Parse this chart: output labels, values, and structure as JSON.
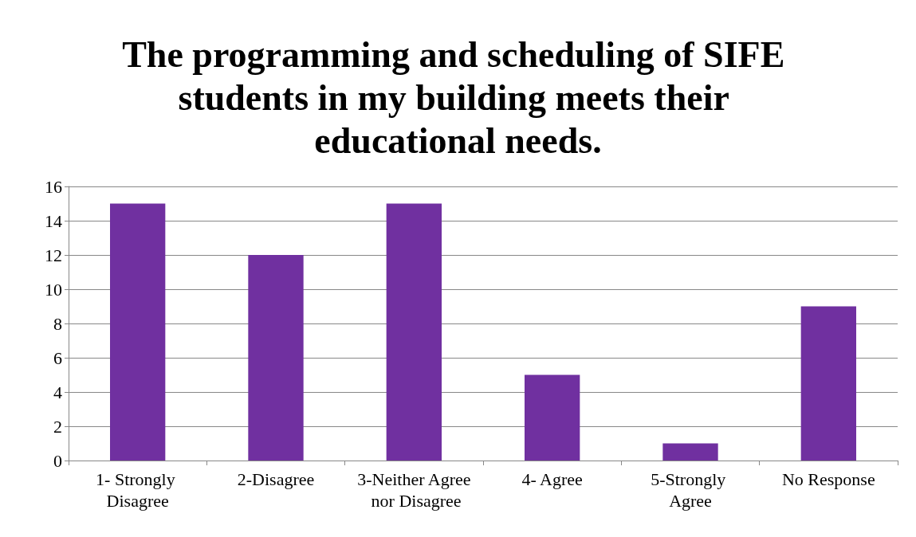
{
  "chart_data": {
    "type": "bar",
    "title": "The programming and scheduling of SIFE students in my building meets their educational needs.",
    "categories": [
      "1- Strongly Disagree",
      "2-Disagree",
      "3-Neither Agree nor Disagree",
      "4- Agree",
      "5-Strongly Agree",
      "No Response"
    ],
    "values": [
      15,
      12,
      15,
      5,
      1,
      9
    ],
    "color": "#7030a0",
    "ylim": [
      0,
      16
    ],
    "yticks": [
      0,
      2,
      4,
      6,
      8,
      10,
      12,
      14,
      16
    ],
    "grid": "y"
  }
}
